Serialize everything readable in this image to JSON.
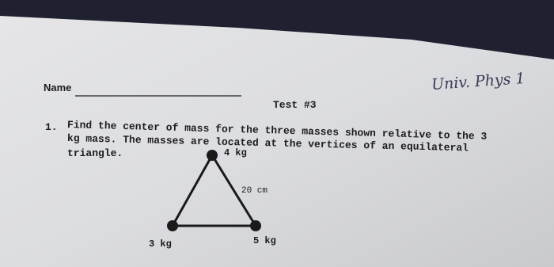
{
  "header": {
    "name_label": "Name",
    "course": "Univ. Phys 1",
    "test_title": "Test #3"
  },
  "question": {
    "number": "1.",
    "lines": [
      "Find the center of mass for the three masses shown relative to the 3",
      "kg mass. The masses are located at the vertices of an equilateral",
      "triangle."
    ]
  },
  "diagram": {
    "top_mass": "4 kg",
    "side_length": "20 cm",
    "left_mass": "3 kg",
    "right_mass": "5 kg"
  }
}
